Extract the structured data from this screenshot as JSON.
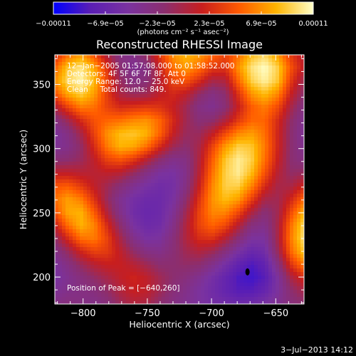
{
  "chart_data": {
    "type": "heatmap",
    "title": "Reconstructed RHESSI Image",
    "xlabel": "Heliocentric X (arcsec)",
    "ylabel": "Heliocentric Y (arcsec)",
    "xlim": [
      -822,
      -628
    ],
    "ylim": [
      179,
      373
    ],
    "x_ticks": [
      -800,
      -750,
      -700,
      -650
    ],
    "x_tick_labels": [
      "−800",
      "−750",
      "−700",
      "−650"
    ],
    "y_ticks": [
      200,
      250,
      300,
      350
    ],
    "y_tick_labels": [
      "200",
      "250",
      "300",
      "350"
    ],
    "colorbar": {
      "min": -0.00011,
      "max": 0.00011,
      "tick_labels": [
        "−0.00011",
        "−6.9e−05",
        "−2.3e−05",
        "2.3e−05",
        "6.9e−05",
        "0.00011"
      ],
      "unit_label": "(photons cm⁻² s⁻¹ asec⁻²)",
      "colormap": [
        "#0000ff",
        "#5a1eb4",
        "#7a32a0",
        "#8c2e6e",
        "#c81e1e",
        "#ff5a00",
        "#ffb400",
        "#ffffc8"
      ]
    },
    "annotations": [
      "12−Jan−2005 01:57:08.000 to 01:58:52.000",
      "Detectors: 4F 5F 6F 7F 8F, Att 0",
      "Energy Range: 12.0 − 25.0 keV",
      "Clean     Total counts: 849."
    ],
    "peak_label": "Position of Peak = [−640,260]",
    "peak": [
      -640,
      260
    ],
    "image_values_relative": [
      [
        0.55,
        0.72,
        0.8,
        0.66,
        0.45,
        0.3,
        0.28,
        0.4,
        0.6,
        0.78,
        0.85,
        0.8,
        0.7,
        0.62,
        0.72,
        0.86,
        0.92,
        0.8,
        0.6,
        0.48
      ],
      [
        0.7,
        0.88,
        0.95,
        0.82,
        0.58,
        0.35,
        0.25,
        0.3,
        0.52,
        0.72,
        0.8,
        0.72,
        0.6,
        0.58,
        0.78,
        0.94,
        1.0,
        0.9,
        0.66,
        0.5
      ],
      [
        0.78,
        0.92,
        0.98,
        0.86,
        0.62,
        0.4,
        0.3,
        0.34,
        0.48,
        0.62,
        0.66,
        0.56,
        0.44,
        0.46,
        0.7,
        0.9,
        0.97,
        0.88,
        0.6,
        0.42
      ],
      [
        0.66,
        0.82,
        0.9,
        0.8,
        0.6,
        0.45,
        0.4,
        0.42,
        0.5,
        0.55,
        0.5,
        0.38,
        0.3,
        0.36,
        0.58,
        0.78,
        0.86,
        0.76,
        0.52,
        0.36
      ],
      [
        0.46,
        0.62,
        0.74,
        0.72,
        0.62,
        0.56,
        0.58,
        0.6,
        0.58,
        0.52,
        0.42,
        0.3,
        0.26,
        0.34,
        0.52,
        0.68,
        0.74,
        0.64,
        0.44,
        0.3
      ],
      [
        0.3,
        0.42,
        0.56,
        0.66,
        0.7,
        0.72,
        0.76,
        0.78,
        0.7,
        0.56,
        0.42,
        0.34,
        0.36,
        0.46,
        0.6,
        0.7,
        0.7,
        0.56,
        0.38,
        0.26
      ],
      [
        0.22,
        0.3,
        0.44,
        0.62,
        0.78,
        0.86,
        0.88,
        0.84,
        0.7,
        0.52,
        0.4,
        0.4,
        0.5,
        0.64,
        0.76,
        0.8,
        0.72,
        0.54,
        0.36,
        0.24
      ],
      [
        0.24,
        0.28,
        0.38,
        0.56,
        0.74,
        0.84,
        0.82,
        0.72,
        0.56,
        0.42,
        0.36,
        0.44,
        0.62,
        0.8,
        0.9,
        0.88,
        0.74,
        0.54,
        0.36,
        0.26
      ],
      [
        0.34,
        0.36,
        0.4,
        0.5,
        0.62,
        0.66,
        0.6,
        0.48,
        0.36,
        0.28,
        0.3,
        0.46,
        0.68,
        0.88,
        0.96,
        0.9,
        0.72,
        0.52,
        0.36,
        0.3
      ],
      [
        0.5,
        0.5,
        0.48,
        0.48,
        0.5,
        0.48,
        0.4,
        0.3,
        0.22,
        0.2,
        0.28,
        0.48,
        0.72,
        0.9,
        0.96,
        0.86,
        0.66,
        0.48,
        0.38,
        0.4
      ],
      [
        0.66,
        0.68,
        0.6,
        0.5,
        0.42,
        0.34,
        0.26,
        0.2,
        0.16,
        0.18,
        0.3,
        0.52,
        0.76,
        0.9,
        0.9,
        0.76,
        0.56,
        0.44,
        0.44,
        0.54
      ],
      [
        0.72,
        0.8,
        0.74,
        0.58,
        0.4,
        0.26,
        0.18,
        0.14,
        0.14,
        0.2,
        0.36,
        0.58,
        0.78,
        0.86,
        0.8,
        0.62,
        0.44,
        0.42,
        0.54,
        0.7
      ],
      [
        0.66,
        0.82,
        0.84,
        0.68,
        0.46,
        0.28,
        0.16,
        0.12,
        0.14,
        0.24,
        0.42,
        0.62,
        0.76,
        0.76,
        0.64,
        0.46,
        0.34,
        0.42,
        0.64,
        0.84
      ],
      [
        0.52,
        0.72,
        0.84,
        0.76,
        0.56,
        0.36,
        0.2,
        0.14,
        0.16,
        0.28,
        0.46,
        0.62,
        0.7,
        0.64,
        0.48,
        0.32,
        0.28,
        0.44,
        0.72,
        0.92
      ],
      [
        0.38,
        0.56,
        0.72,
        0.74,
        0.62,
        0.44,
        0.28,
        0.2,
        0.22,
        0.32,
        0.46,
        0.56,
        0.58,
        0.48,
        0.34,
        0.22,
        0.22,
        0.44,
        0.74,
        0.94
      ],
      [
        0.28,
        0.4,
        0.54,
        0.62,
        0.6,
        0.5,
        0.38,
        0.3,
        0.28,
        0.34,
        0.42,
        0.46,
        0.42,
        0.32,
        0.2,
        0.12,
        0.16,
        0.4,
        0.7,
        0.88
      ],
      [
        0.22,
        0.3,
        0.4,
        0.48,
        0.52,
        0.52,
        0.48,
        0.42,
        0.36,
        0.36,
        0.38,
        0.36,
        0.28,
        0.18,
        0.08,
        0.02,
        0.08,
        0.3,
        0.58,
        0.74
      ],
      [
        0.2,
        0.26,
        0.32,
        0.38,
        0.44,
        0.5,
        0.54,
        0.5,
        0.42,
        0.36,
        0.32,
        0.26,
        0.18,
        0.1,
        0.02,
        0.0,
        0.04,
        0.22,
        0.44,
        0.56
      ],
      [
        0.24,
        0.28,
        0.3,
        0.32,
        0.38,
        0.46,
        0.52,
        0.5,
        0.42,
        0.34,
        0.28,
        0.22,
        0.16,
        0.1,
        0.04,
        0.04,
        0.1,
        0.22,
        0.36,
        0.44
      ],
      [
        0.3,
        0.32,
        0.3,
        0.28,
        0.32,
        0.4,
        0.46,
        0.44,
        0.36,
        0.3,
        0.26,
        0.22,
        0.18,
        0.16,
        0.14,
        0.16,
        0.2,
        0.26,
        0.32,
        0.36
      ]
    ]
  },
  "footer": {
    "timestamp": "3−Jul−2013 14:12"
  }
}
